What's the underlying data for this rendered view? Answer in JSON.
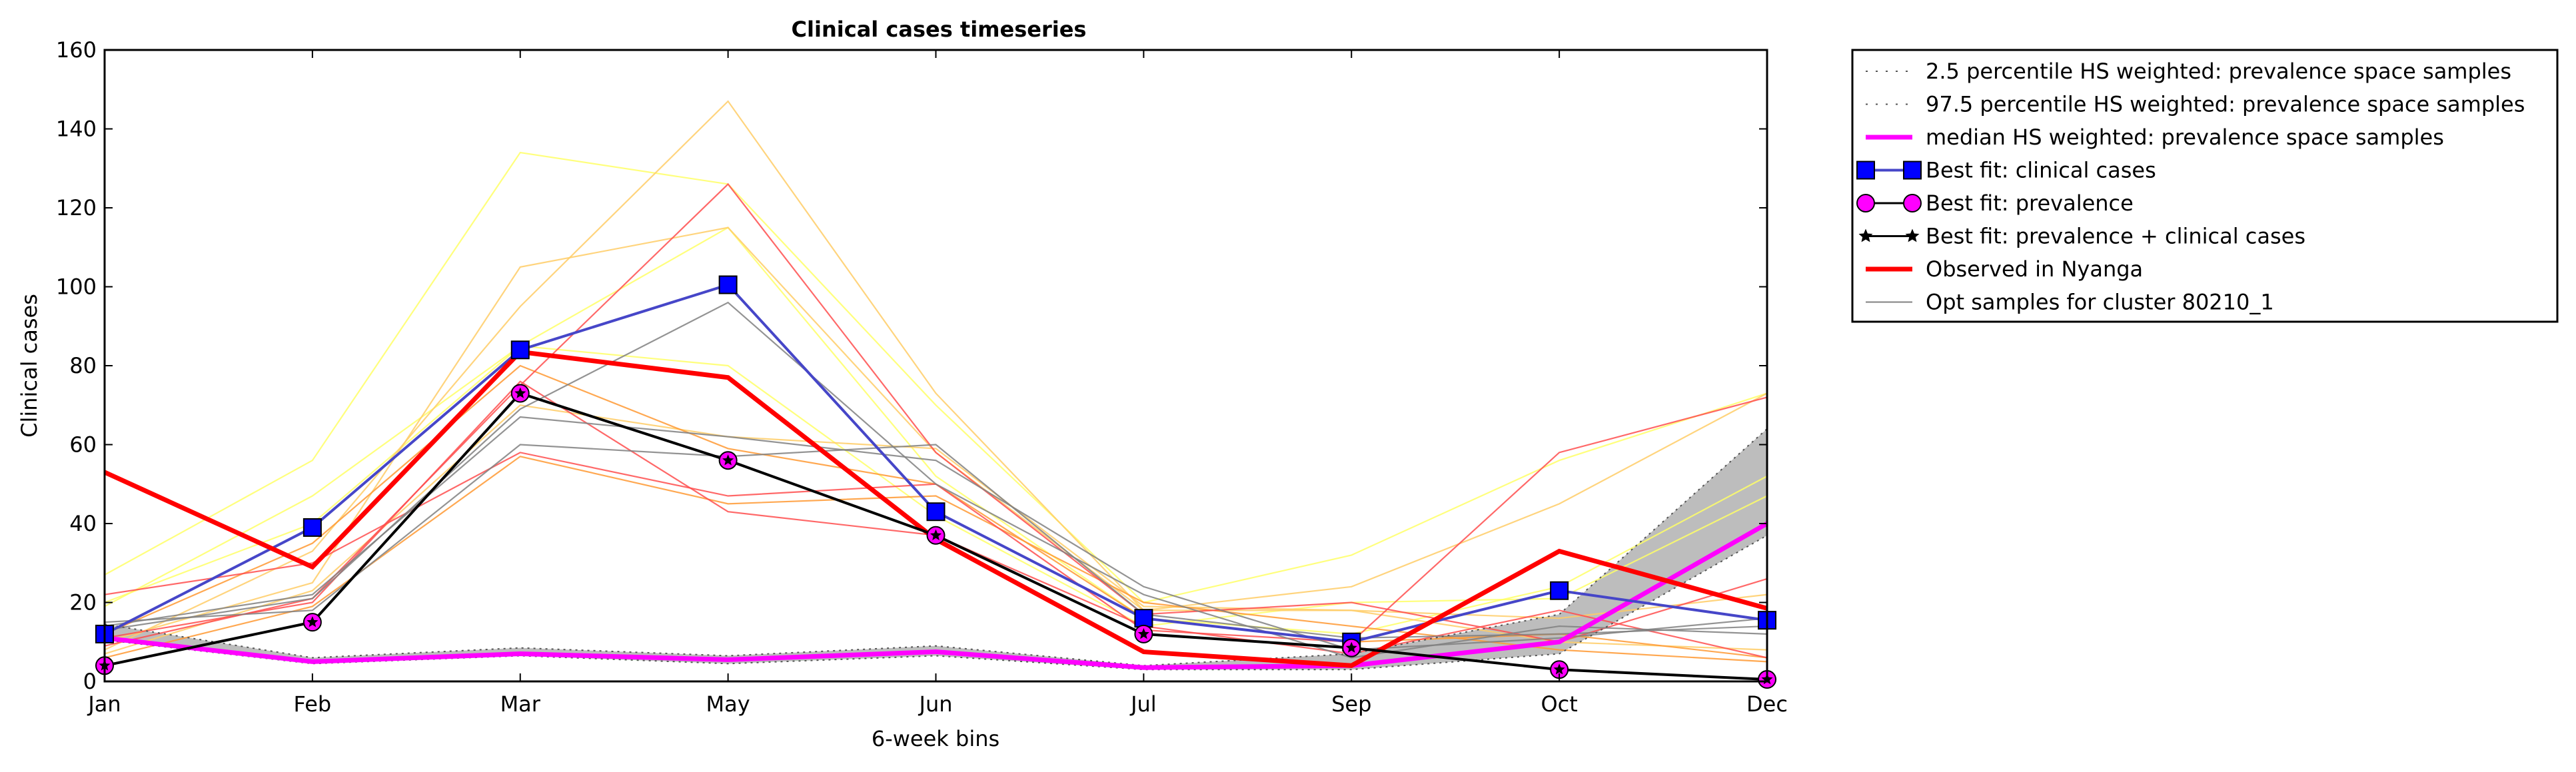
{
  "chart_data": {
    "type": "line",
    "title": "Clinical cases timeseries",
    "xlabel": "6-week bins",
    "ylabel": "Clinical cases",
    "categories": [
      "Jan",
      "Feb",
      "Mar",
      "May",
      "Jun",
      "Jul",
      "Sep",
      "Oct",
      "Dec"
    ],
    "yticks": [
      0,
      20,
      40,
      60,
      80,
      100,
      120,
      140,
      160
    ],
    "ylim": [
      0,
      160
    ],
    "grid": false,
    "legend_position": "outside-right-top",
    "band": {
      "lower": [
        10.5,
        4.5,
        6.5,
        4.5,
        6.5,
        3.0,
        3.0,
        7.0,
        37.0
      ],
      "upper": [
        14.5,
        6.0,
        8.5,
        6.5,
        9.0,
        4.0,
        7.0,
        17.0,
        64.0
      ],
      "color": "#bdbdbd"
    },
    "series": [
      {
        "name": "2.5 percentile HS weighted: prevalence space samples",
        "role": "p2_5",
        "color": "#555555",
        "values": [
          10.5,
          4.5,
          6.5,
          4.5,
          6.5,
          3.0,
          3.0,
          7.0,
          37.0
        ]
      },
      {
        "name": "97.5 percentile HS weighted: prevalence space samples",
        "role": "p97_5",
        "color": "#555555",
        "values": [
          14.5,
          6.0,
          8.5,
          6.5,
          9.0,
          4.0,
          7.0,
          17.0,
          64.0
        ]
      },
      {
        "name": "median HS weighted: prevalence space samples",
        "role": "median",
        "color": "#ff00ff",
        "values": [
          11.0,
          5.0,
          7.0,
          5.5,
          7.5,
          3.5,
          4.0,
          10.0,
          40.0
        ]
      },
      {
        "name": "Best fit: clinical cases",
        "role": "bestfit_clinical",
        "color": "#0000ff",
        "values": [
          12,
          39,
          84,
          100.5,
          43,
          16,
          10,
          23,
          15.5
        ]
      },
      {
        "name": "Best fit: prevalence",
        "role": "bestfit_prevalence",
        "color": "#ff00ff",
        "values": [
          4,
          15,
          73,
          56,
          37,
          12,
          8.5,
          3,
          0.5
        ]
      },
      {
        "name": "Best fit: prevalence + clinical cases",
        "role": "bestfit_both",
        "color": "#000000",
        "values": [
          4,
          15,
          73,
          56,
          37,
          12,
          8.5,
          3,
          0.5
        ]
      },
      {
        "name": "Observed in Nyanga",
        "role": "observed",
        "color": "#ff0000",
        "values": [
          53,
          29,
          83.5,
          77,
          36,
          7.5,
          4,
          33,
          18.5
        ]
      },
      {
        "name": "Opt samples for cluster 80210_1",
        "role": "opt",
        "color": "#808080",
        "values": [
          14,
          22,
          67,
          62,
          56,
          24,
          8,
          11,
          16
        ]
      }
    ],
    "opt_samples": [
      {
        "color": "#ffff66",
        "values": [
          27,
          56,
          134,
          126,
          70,
          20,
          32,
          56,
          73
        ]
      },
      {
        "color": "#ffff66",
        "values": [
          19,
          47,
          85,
          80,
          42,
          14,
          20,
          21,
          47
        ]
      },
      {
        "color": "#ffff66",
        "values": [
          20,
          40,
          85,
          115,
          52,
          16,
          12,
          24,
          52
        ]
      },
      {
        "color": "#ffcc66",
        "values": [
          8,
          33,
          95,
          147,
          73,
          18,
          24,
          45,
          73
        ]
      },
      {
        "color": "#ffcc66",
        "values": [
          10,
          25,
          105,
          115,
          58,
          18,
          18,
          16,
          22
        ]
      },
      {
        "color": "#ffcc66",
        "values": [
          7,
          23,
          70,
          62,
          59,
          19,
          18,
          10,
          8
        ]
      },
      {
        "color": "#ff9933",
        "values": [
          12,
          35,
          80,
          59,
          50,
          16,
          10,
          12,
          6
        ]
      },
      {
        "color": "#ff9933",
        "values": [
          6,
          19,
          57,
          45,
          47,
          20,
          14,
          8,
          5
        ]
      },
      {
        "color": "#ff4d4d",
        "values": [
          22,
          30,
          58,
          47,
          50,
          13,
          10,
          58,
          72
        ]
      },
      {
        "color": "#ff4d4d",
        "values": [
          9,
          21,
          75,
          126,
          58,
          17,
          20,
          10,
          26
        ]
      },
      {
        "color": "#ff4d4d",
        "values": [
          11,
          20,
          76,
          43,
          37,
          14,
          7,
          18,
          6
        ]
      },
      {
        "color": "#808080",
        "values": [
          14,
          22,
          67,
          62,
          56,
          24,
          8,
          11,
          16
        ]
      },
      {
        "color": "#808080",
        "values": [
          13,
          21,
          69,
          96,
          50,
          22,
          6,
          14,
          12
        ]
      },
      {
        "color": "#808080",
        "values": [
          15,
          18,
          60,
          57,
          60,
          17,
          11,
          12,
          14
        ]
      }
    ]
  }
}
